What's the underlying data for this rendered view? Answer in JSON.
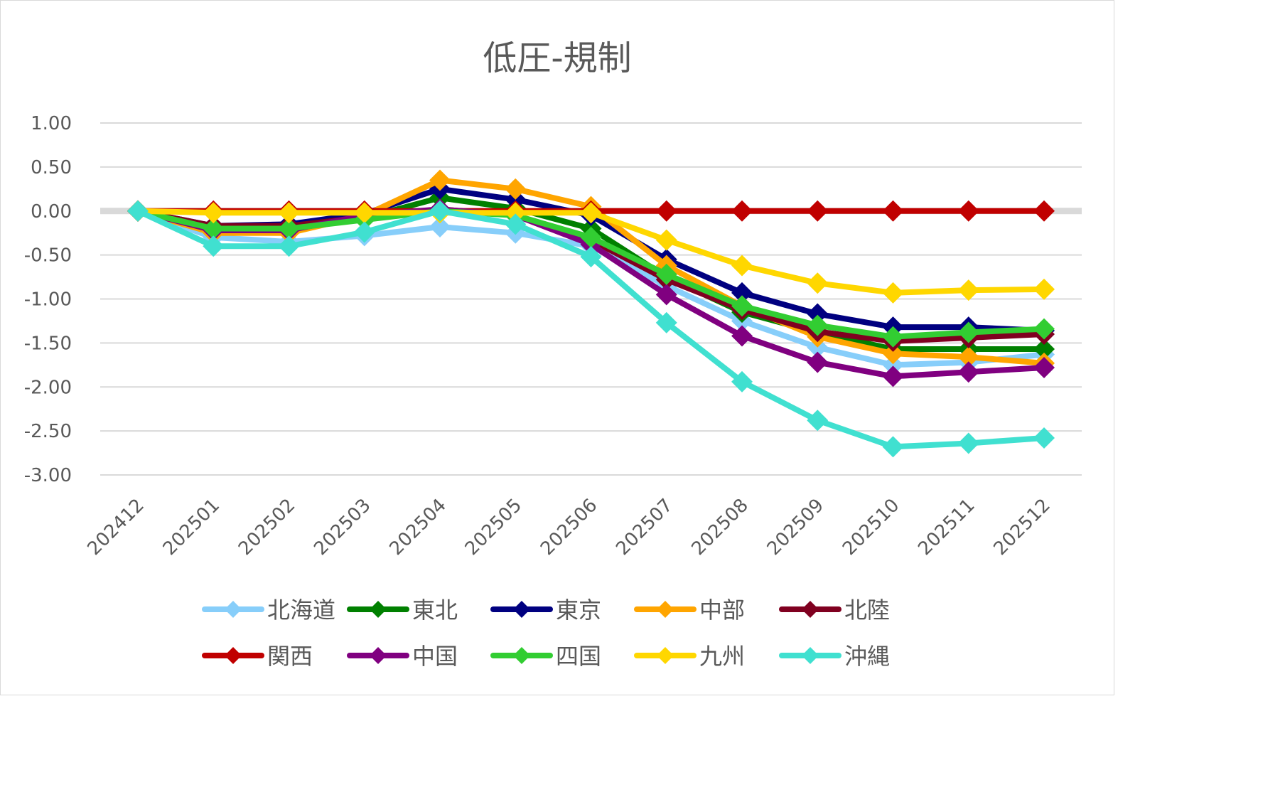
{
  "chart_data": {
    "type": "line",
    "title": "低圧-規制",
    "xlabel": "",
    "ylabel": "",
    "ylim": [
      -3.0,
      1.0
    ],
    "yticks": [
      "1.00",
      "0.50",
      "0.00",
      "-0.50",
      "-1.00",
      "-1.50",
      "-2.00",
      "-2.50",
      "-3.00"
    ],
    "ytick_values": [
      1.0,
      0.5,
      0.0,
      -0.5,
      -1.0,
      -1.5,
      -2.0,
      -2.5,
      -3.0
    ],
    "grid": true,
    "legend_position": "bottom",
    "marker": "diamond",
    "categories": [
      "202412",
      "202501",
      "202502",
      "202503",
      "202504",
      "202505",
      "202506",
      "202507",
      "202508",
      "202509",
      "202510",
      "202511",
      "202512"
    ],
    "series": [
      {
        "name": "北海道",
        "color": "#87CEFA",
        "values": [
          0,
          -0.3,
          -0.35,
          -0.28,
          -0.18,
          -0.25,
          -0.4,
          -0.85,
          -1.25,
          -1.55,
          -1.75,
          -1.72,
          -1.63
        ]
      },
      {
        "name": "東北",
        "color": "#008000",
        "values": [
          0,
          -0.18,
          -0.18,
          -0.08,
          0.15,
          0.03,
          -0.2,
          -0.75,
          -1.15,
          -1.38,
          -1.57,
          -1.57,
          -1.57
        ]
      },
      {
        "name": "東京",
        "color": "#000080",
        "values": [
          0,
          -0.17,
          -0.15,
          -0.03,
          0.25,
          0.13,
          -0.05,
          -0.55,
          -0.93,
          -1.17,
          -1.32,
          -1.32,
          -1.36
        ]
      },
      {
        "name": "中部",
        "color": "#FFA500",
        "values": [
          0,
          -0.25,
          -0.25,
          -0.05,
          0.35,
          0.25,
          0.05,
          -0.62,
          -1.08,
          -1.43,
          -1.62,
          -1.66,
          -1.73
        ]
      },
      {
        "name": "北陸",
        "color": "#800020",
        "values": [
          0,
          -0.17,
          -0.17,
          -0.07,
          0.02,
          -0.05,
          -0.33,
          -0.78,
          -1.12,
          -1.37,
          -1.48,
          -1.44,
          -1.4
        ]
      },
      {
        "name": "関西",
        "color": "#C00000",
        "values": [
          0,
          0,
          0,
          0,
          0,
          0,
          0,
          0,
          0,
          0,
          0,
          0,
          0
        ]
      },
      {
        "name": "中国",
        "color": "#800080",
        "values": [
          0,
          -0.22,
          -0.22,
          -0.05,
          0.02,
          -0.05,
          -0.38,
          -0.95,
          -1.42,
          -1.72,
          -1.88,
          -1.83,
          -1.78
        ]
      },
      {
        "name": "四国",
        "color": "#32CD32",
        "values": [
          0,
          -0.2,
          -0.2,
          -0.1,
          0.0,
          -0.05,
          -0.3,
          -0.72,
          -1.08,
          -1.3,
          -1.43,
          -1.38,
          -1.34
        ]
      },
      {
        "name": "九州",
        "color": "#FFD700",
        "values": [
          0,
          -0.02,
          -0.02,
          -0.02,
          -0.02,
          -0.02,
          -0.02,
          -0.33,
          -0.62,
          -0.82,
          -0.93,
          -0.9,
          -0.89
        ]
      },
      {
        "name": "沖縄",
        "color": "#40E0D0",
        "values": [
          0,
          -0.4,
          -0.4,
          -0.24,
          0.0,
          -0.15,
          -0.52,
          -1.27,
          -1.94,
          -2.38,
          -2.68,
          -2.64,
          -2.58
        ]
      }
    ]
  },
  "colors": {
    "text": "#595959",
    "gridline": "#d9d9d9",
    "zero_line": "#d9d9d9",
    "border": "#d9d9d9"
  }
}
